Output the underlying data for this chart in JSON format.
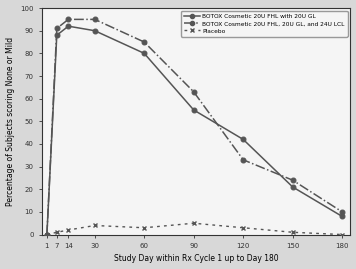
{
  "x_ticks": [
    1,
    7,
    14,
    30,
    60,
    90,
    120,
    150,
    180
  ],
  "series1_x": [
    1,
    7,
    14,
    30,
    60,
    90,
    120,
    150,
    180
  ],
  "series1_y": [
    0,
    88,
    92,
    90,
    80,
    55,
    42,
    21,
    8
  ],
  "series2_x": [
    1,
    7,
    14,
    30,
    60,
    90,
    120,
    150,
    180
  ],
  "series2_y": [
    0,
    91,
    95,
    95,
    85,
    63,
    33,
    24,
    10
  ],
  "series3_x": [
    1,
    7,
    14,
    30,
    60,
    90,
    120,
    150,
    180
  ],
  "series3_y": [
    0,
    1,
    2,
    4,
    3,
    5,
    3,
    1,
    0
  ],
  "series1_label": "BOTOX Cosmetic 20U FHL with 20U GL",
  "series2_label": "BOTOX Cosmetic 20U FHL, 20U GL, and 24U LCL",
  "series3_label": "Placebo",
  "xlabel": "Study Day within Rx Cycle 1 up to Day 180",
  "ylabel": "Percentage of Subjects scoring None or Mild",
  "ylim": [
    0,
    100
  ],
  "yticks": [
    0,
    10,
    20,
    30,
    40,
    50,
    60,
    70,
    80,
    90,
    100
  ],
  "line_color": "#555555",
  "outer_bg": "#d8d8d8",
  "plot_bg": "#f5f5f5"
}
